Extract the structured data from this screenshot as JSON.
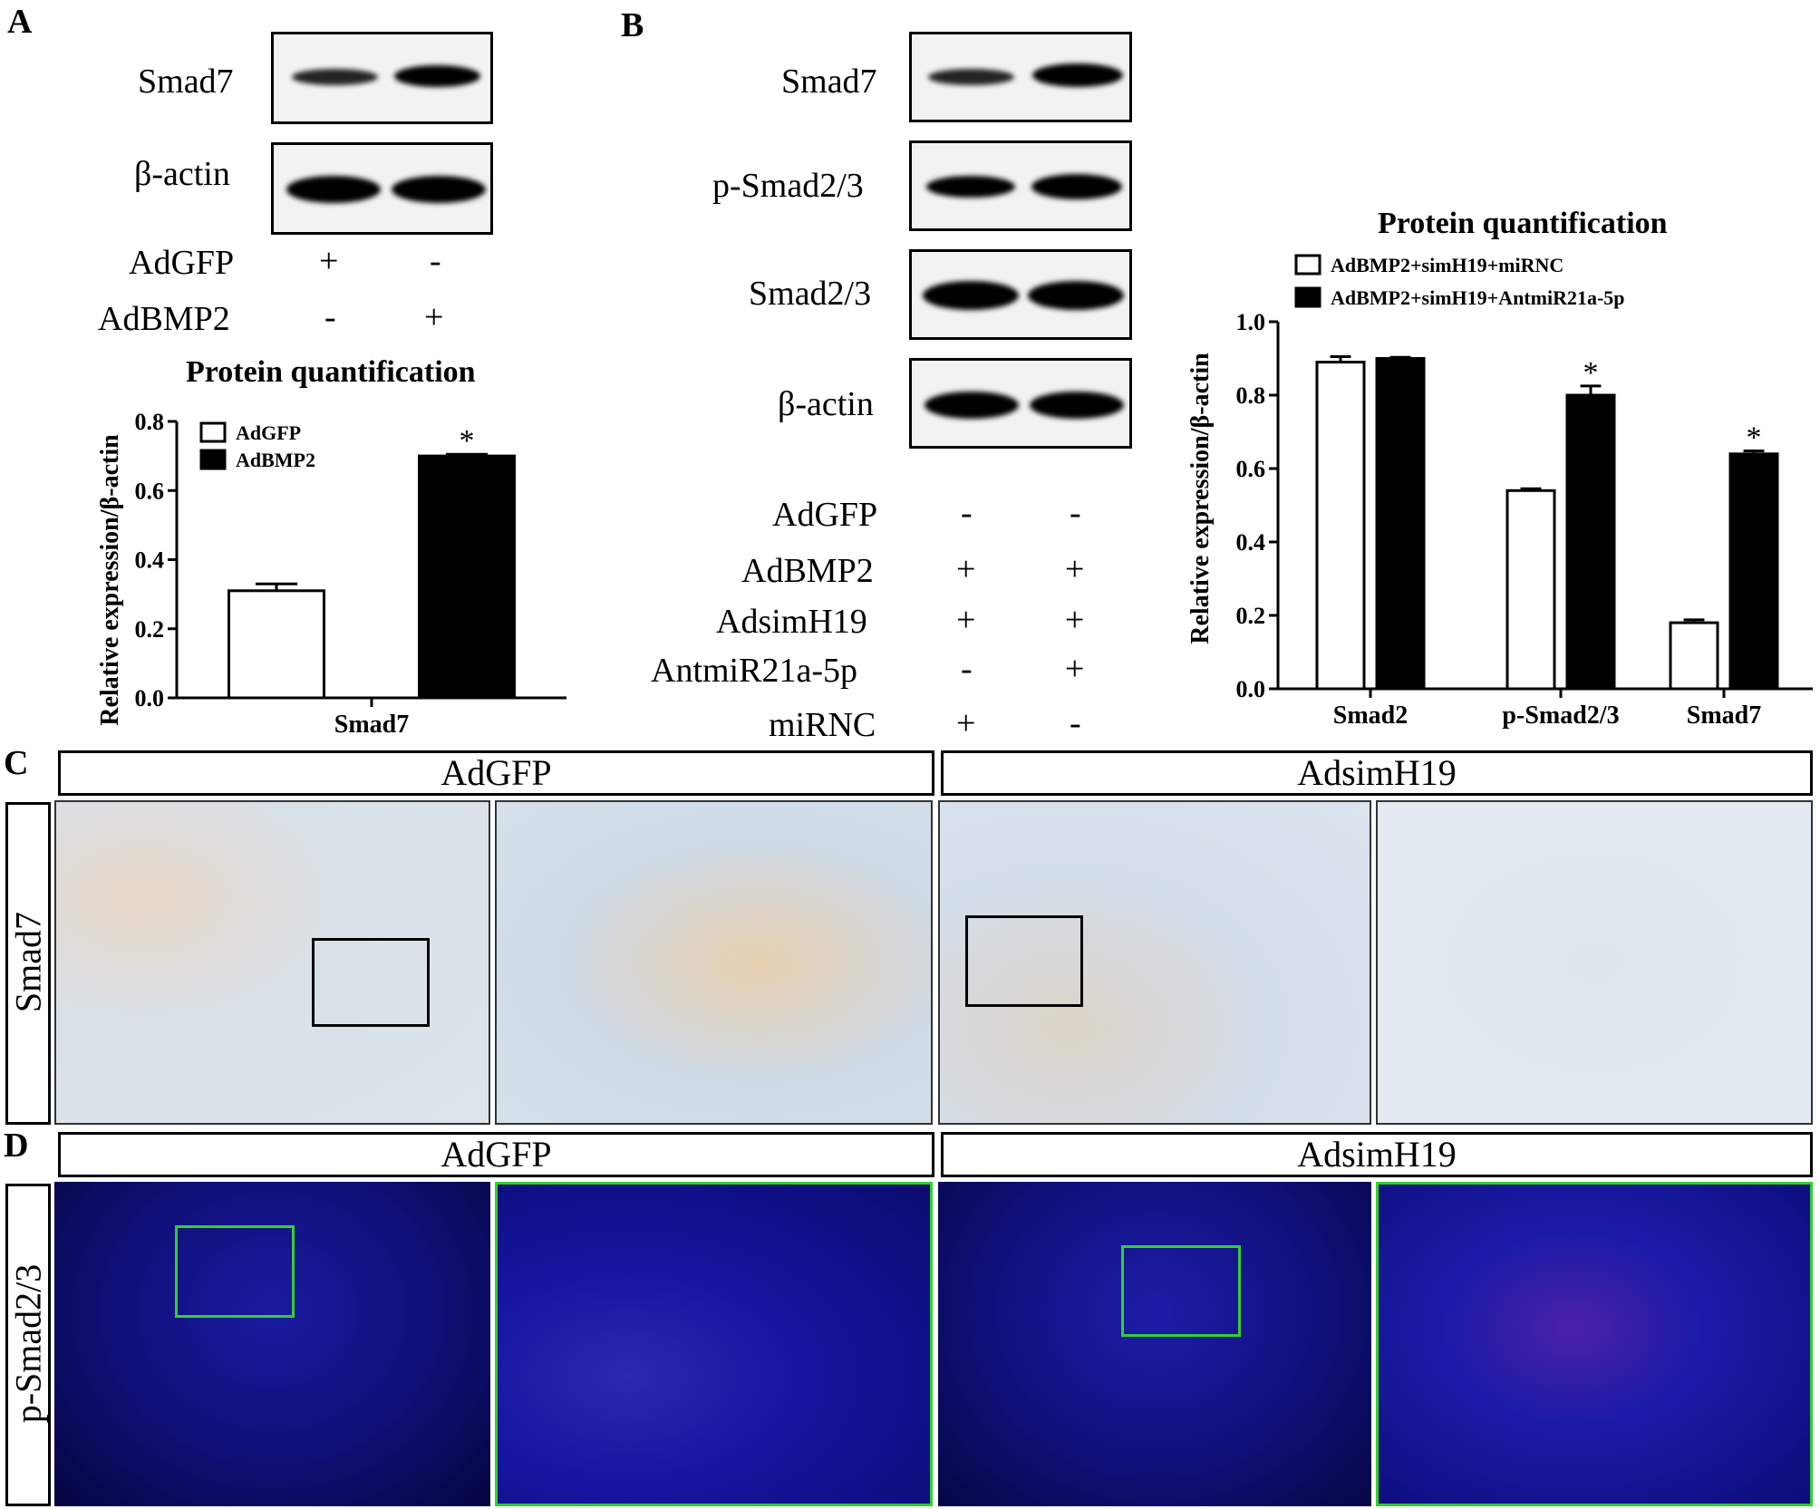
{
  "panel_labels": {
    "a": "A",
    "b": "B",
    "c": "C",
    "d": "D"
  },
  "panel_a": {
    "blot_labels": [
      "Smad7",
      "β-actin"
    ],
    "conditions": [
      {
        "name": "AdGFP",
        "signs": [
          "+",
          "-"
        ]
      },
      {
        "name": "AdBMP2",
        "signs": [
          "-",
          "+"
        ]
      }
    ]
  },
  "panel_b": {
    "blot_labels": [
      "Smad7",
      "p-Smad2/3",
      "Smad2/3",
      "β-actin"
    ],
    "conditions": [
      {
        "name": "AdGFP",
        "signs": [
          "-",
          "-"
        ]
      },
      {
        "name": "AdBMP2",
        "signs": [
          "+",
          "+"
        ]
      },
      {
        "name": "AdsimH19",
        "signs": [
          "+",
          "+"
        ]
      },
      {
        "name": "AntmiR21a-5p",
        "signs": [
          "-",
          "+"
        ]
      },
      {
        "name": "miRNC",
        "signs": [
          "+",
          "-"
        ]
      }
    ]
  },
  "panel_c": {
    "headers": [
      "AdGFP",
      "AdsimH19"
    ],
    "row_label": "Smad7"
  },
  "panel_d": {
    "headers": [
      "AdGFP",
      "AdsimH19"
    ],
    "row_label": "p-Smad2/3"
  },
  "chart_data": [
    {
      "type": "bar",
      "title": "Protein quantification",
      "ylabel": "Relative expression/β-actin",
      "xlabel": "",
      "categories": [
        "Smad7"
      ],
      "series": [
        {
          "name": "AdGFP",
          "values": [
            0.31
          ],
          "errors": [
            0.02
          ],
          "color": "#ffffff"
        },
        {
          "name": "AdBMP2",
          "values": [
            0.7
          ],
          "errors": [
            0.005
          ],
          "color": "#000000"
        }
      ],
      "significance": [
        {
          "category": "Smad7",
          "series": "AdBMP2",
          "label": "*"
        }
      ],
      "ylim": [
        0,
        0.8
      ],
      "yticks": [
        "0.0",
        "0.2",
        "0.4",
        "0.6",
        "0.8"
      ],
      "legend": "top-left"
    },
    {
      "type": "bar",
      "title": "Protein quantification",
      "ylabel": "Relative expression/β-actin",
      "xlabel": "",
      "categories": [
        "Smad2",
        "p-Smad2/3",
        "Smad7"
      ],
      "series": [
        {
          "name": "AdBMP2+simH19+miRNC",
          "values": [
            0.89,
            0.54,
            0.18
          ],
          "errors": [
            0.015,
            0.005,
            0.008
          ],
          "color": "#ffffff"
        },
        {
          "name": "AdBMP2+simH19+AntmiR21a-5p",
          "values": [
            0.9,
            0.8,
            0.64
          ],
          "errors": [
            0.003,
            0.025,
            0.008
          ],
          "color": "#000000"
        }
      ],
      "significance": [
        {
          "category": "p-Smad2/3",
          "series": "AdBMP2+simH19+AntmiR21a-5p",
          "label": "*"
        },
        {
          "category": "Smad7",
          "series": "AdBMP2+simH19+AntmiR21a-5p",
          "label": "*"
        }
      ],
      "ylim": [
        0,
        1.0
      ],
      "yticks": [
        "0.0",
        "0.2",
        "0.4",
        "0.6",
        "0.8",
        "1.0"
      ],
      "legend": "top"
    }
  ]
}
